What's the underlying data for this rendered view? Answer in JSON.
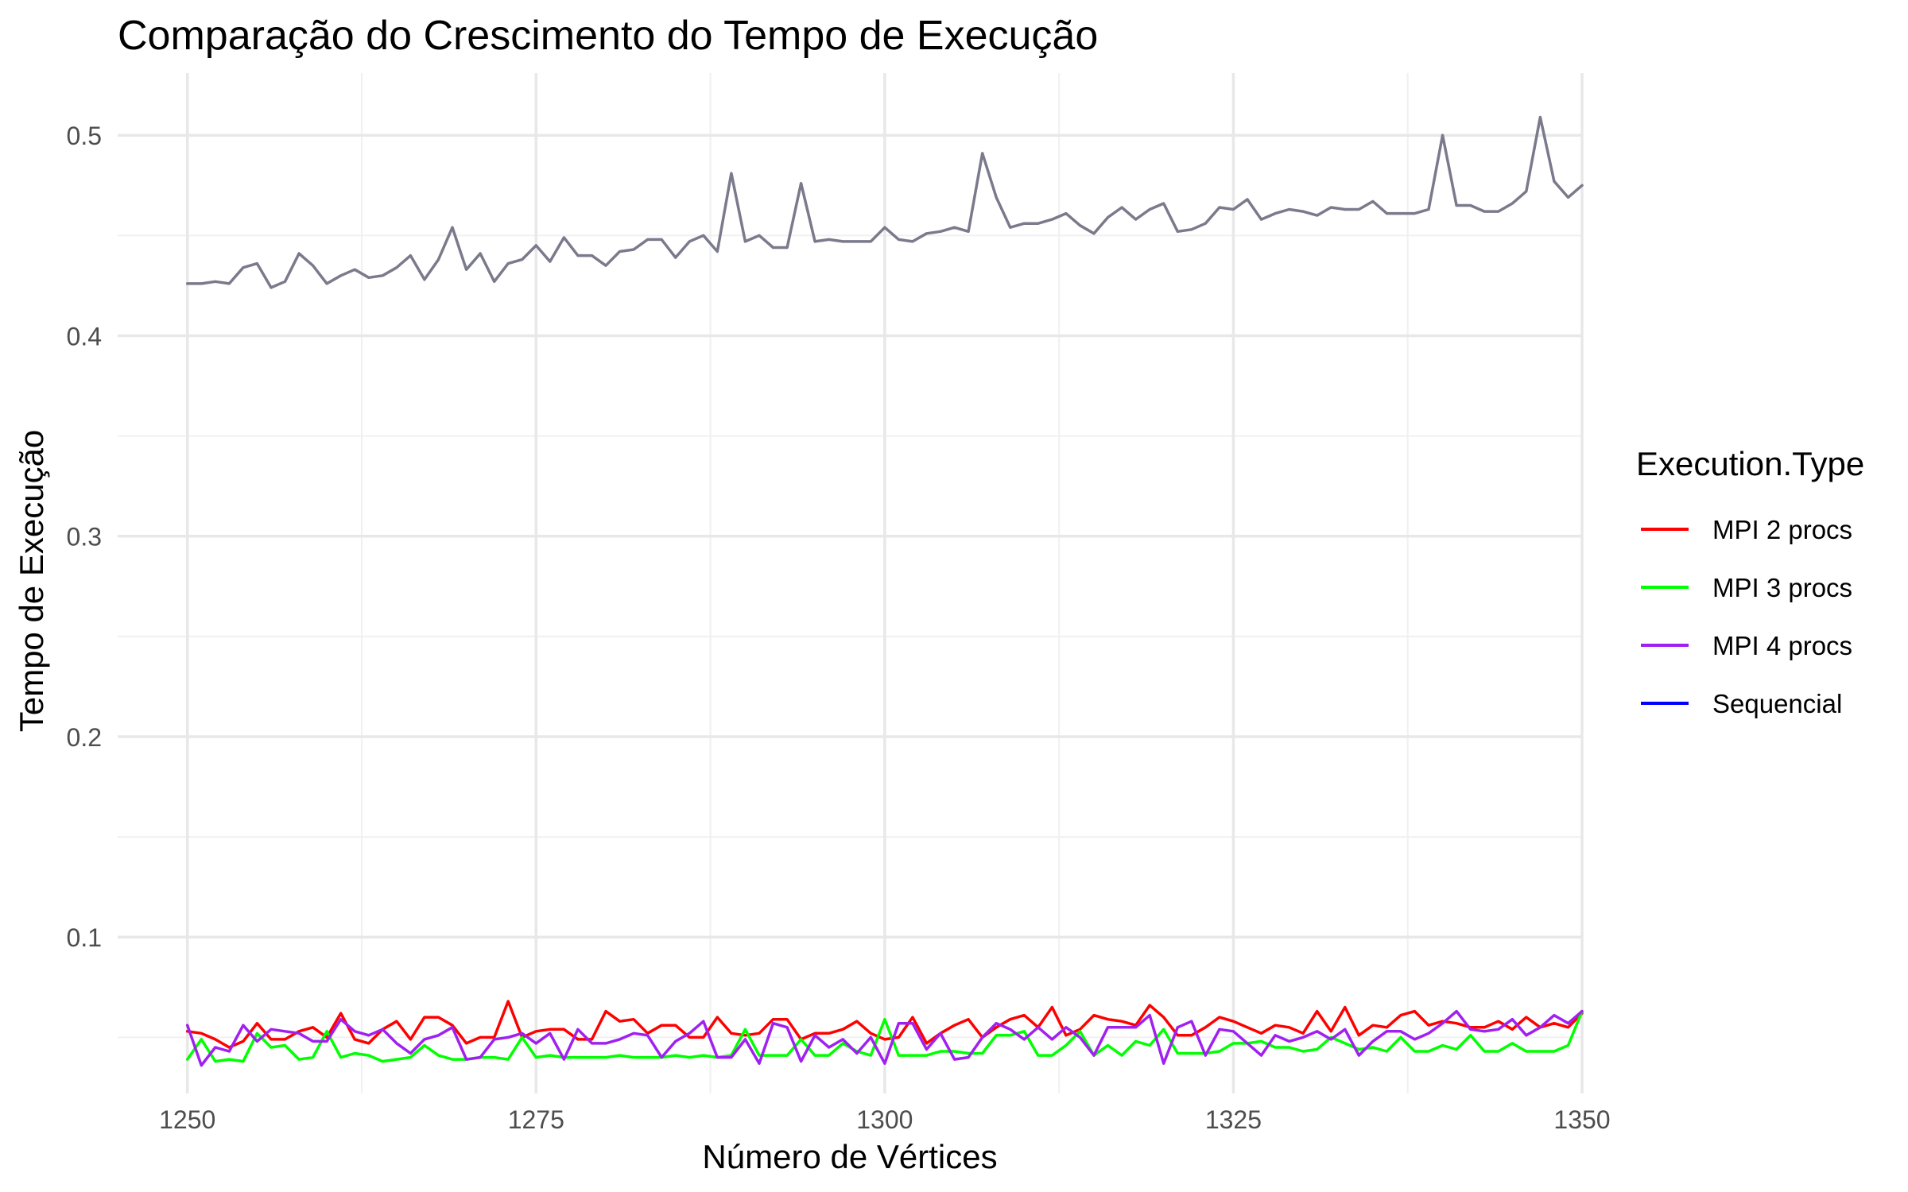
{
  "chart_data": {
    "type": "line",
    "title": "Comparação do Crescimento do Tempo de Execução",
    "xlabel": "Número de Vértices",
    "ylabel": "Tempo de Execução",
    "xlim": [
      1245,
      1350
    ],
    "ylim": [
      0.022,
      0.531
    ],
    "x_ticks": [
      1250,
      1275,
      1300,
      1325,
      1350
    ],
    "y_ticks": [
      0.1,
      0.2,
      0.3,
      0.4,
      0.5
    ],
    "x_tick_labels": [
      "1250",
      "1275",
      "1300",
      "1325",
      "1350"
    ],
    "y_tick_labels": [
      "0.1",
      "0.2",
      "0.3",
      "0.4",
      "0.5"
    ],
    "grid": true,
    "legend_title": "Execution.Type",
    "legend_position": "right",
    "x_start": 1250,
    "x_step": 1,
    "series": [
      {
        "name": "MPI 2 procs",
        "color": "#ff0000",
        "values": [
          0.053,
          0.052,
          0.049,
          0.045,
          0.048,
          0.057,
          0.049,
          0.049,
          0.053,
          0.055,
          0.05,
          0.062,
          0.049,
          0.047,
          0.054,
          0.058,
          0.049,
          0.06,
          0.06,
          0.056,
          0.047,
          0.05,
          0.05,
          0.068,
          0.05,
          0.053,
          0.054,
          0.054,
          0.049,
          0.049,
          0.063,
          0.058,
          0.059,
          0.052,
          0.056,
          0.056,
          0.05,
          0.05,
          0.06,
          0.052,
          0.051,
          0.052,
          0.059,
          0.059,
          0.049,
          0.052,
          0.052,
          0.054,
          0.058,
          0.052,
          0.049,
          0.05,
          0.06,
          0.047,
          0.052,
          0.056,
          0.059,
          0.05,
          0.055,
          0.059,
          0.061,
          0.055,
          0.065,
          0.051,
          0.054,
          0.061,
          0.059,
          0.058,
          0.056,
          0.066,
          0.06,
          0.051,
          0.051,
          0.055,
          0.06,
          0.058,
          0.055,
          0.052,
          0.056,
          0.055,
          0.052,
          0.063,
          0.053,
          0.065,
          0.051,
          0.056,
          0.055,
          0.061,
          0.063,
          0.056,
          0.058,
          0.057,
          0.055,
          0.055,
          0.058,
          0.054,
          0.06,
          0.055,
          0.057,
          0.055,
          0.062
        ]
      },
      {
        "name": "MPI 3 procs",
        "color": "#00ff00",
        "values": [
          0.039,
          0.049,
          0.038,
          0.039,
          0.038,
          0.052,
          0.045,
          0.046,
          0.039,
          0.04,
          0.053,
          0.04,
          0.042,
          0.041,
          0.038,
          0.039,
          0.04,
          0.046,
          0.041,
          0.039,
          0.039,
          0.04,
          0.04,
          0.039,
          0.05,
          0.04,
          0.041,
          0.04,
          0.04,
          0.04,
          0.04,
          0.041,
          0.04,
          0.04,
          0.04,
          0.041,
          0.04,
          0.041,
          0.04,
          0.041,
          0.054,
          0.041,
          0.041,
          0.041,
          0.049,
          0.041,
          0.041,
          0.047,
          0.043,
          0.041,
          0.059,
          0.041,
          0.041,
          0.041,
          0.043,
          0.043,
          0.042,
          0.042,
          0.051,
          0.051,
          0.053,
          0.041,
          0.041,
          0.046,
          0.053,
          0.041,
          0.046,
          0.041,
          0.048,
          0.046,
          0.054,
          0.042,
          0.042,
          0.042,
          0.043,
          0.047,
          0.047,
          0.048,
          0.045,
          0.045,
          0.043,
          0.044,
          0.05,
          0.047,
          0.044,
          0.045,
          0.043,
          0.05,
          0.043,
          0.043,
          0.046,
          0.044,
          0.051,
          0.043,
          0.043,
          0.047,
          0.043,
          0.043,
          0.043,
          0.046,
          0.063
        ]
      },
      {
        "name": "MPI 4 procs",
        "color": "#a020f0",
        "values": [
          0.056,
          0.036,
          0.045,
          0.043,
          0.056,
          0.048,
          0.054,
          0.053,
          0.052,
          0.048,
          0.048,
          0.059,
          0.053,
          0.051,
          0.054,
          0.047,
          0.042,
          0.049,
          0.051,
          0.055,
          0.039,
          0.04,
          0.049,
          0.05,
          0.052,
          0.047,
          0.052,
          0.039,
          0.054,
          0.047,
          0.047,
          0.049,
          0.052,
          0.051,
          0.04,
          0.048,
          0.052,
          0.058,
          0.04,
          0.04,
          0.049,
          0.037,
          0.057,
          0.055,
          0.038,
          0.051,
          0.045,
          0.049,
          0.042,
          0.05,
          0.037,
          0.057,
          0.057,
          0.044,
          0.052,
          0.039,
          0.04,
          0.05,
          0.057,
          0.054,
          0.049,
          0.055,
          0.049,
          0.055,
          0.05,
          0.041,
          0.055,
          0.055,
          0.055,
          0.061,
          0.037,
          0.055,
          0.058,
          0.041,
          0.054,
          0.053,
          0.047,
          0.041,
          0.051,
          0.048,
          0.05,
          0.053,
          0.049,
          0.054,
          0.041,
          0.048,
          0.053,
          0.053,
          0.049,
          0.052,
          0.057,
          0.063,
          0.054,
          0.053,
          0.054,
          0.059,
          0.051,
          0.055,
          0.061,
          0.057,
          0.063
        ]
      },
      {
        "name": "Sequencial",
        "color": "#0000ff",
        "values": [
          0.426,
          0.426,
          0.427,
          0.426,
          0.434,
          0.436,
          0.424,
          0.427,
          0.441,
          0.435,
          0.426,
          0.43,
          0.433,
          0.429,
          0.43,
          0.434,
          0.44,
          0.428,
          0.438,
          0.454,
          0.433,
          0.441,
          0.427,
          0.436,
          0.438,
          0.445,
          0.437,
          0.449,
          0.44,
          0.44,
          0.435,
          0.442,
          0.443,
          0.448,
          0.448,
          0.439,
          0.447,
          0.45,
          0.442,
          0.481,
          0.447,
          0.45,
          0.444,
          0.444,
          0.476,
          0.447,
          0.448,
          0.447,
          0.447,
          0.447,
          0.454,
          0.448,
          0.447,
          0.451,
          0.452,
          0.454,
          0.452,
          0.491,
          0.469,
          0.454,
          0.456,
          0.456,
          0.458,
          0.461,
          0.455,
          0.451,
          0.459,
          0.464,
          0.458,
          0.463,
          0.466,
          0.452,
          0.453,
          0.456,
          0.464,
          0.463,
          0.468,
          0.458,
          0.461,
          0.463,
          0.462,
          0.46,
          0.464,
          0.463,
          0.463,
          0.467,
          0.461,
          0.461,
          0.461,
          0.463,
          0.5,
          0.465,
          0.465,
          0.462,
          0.462,
          0.466,
          0.472,
          0.509,
          0.477,
          0.469,
          0.475
        ]
      }
    ]
  }
}
